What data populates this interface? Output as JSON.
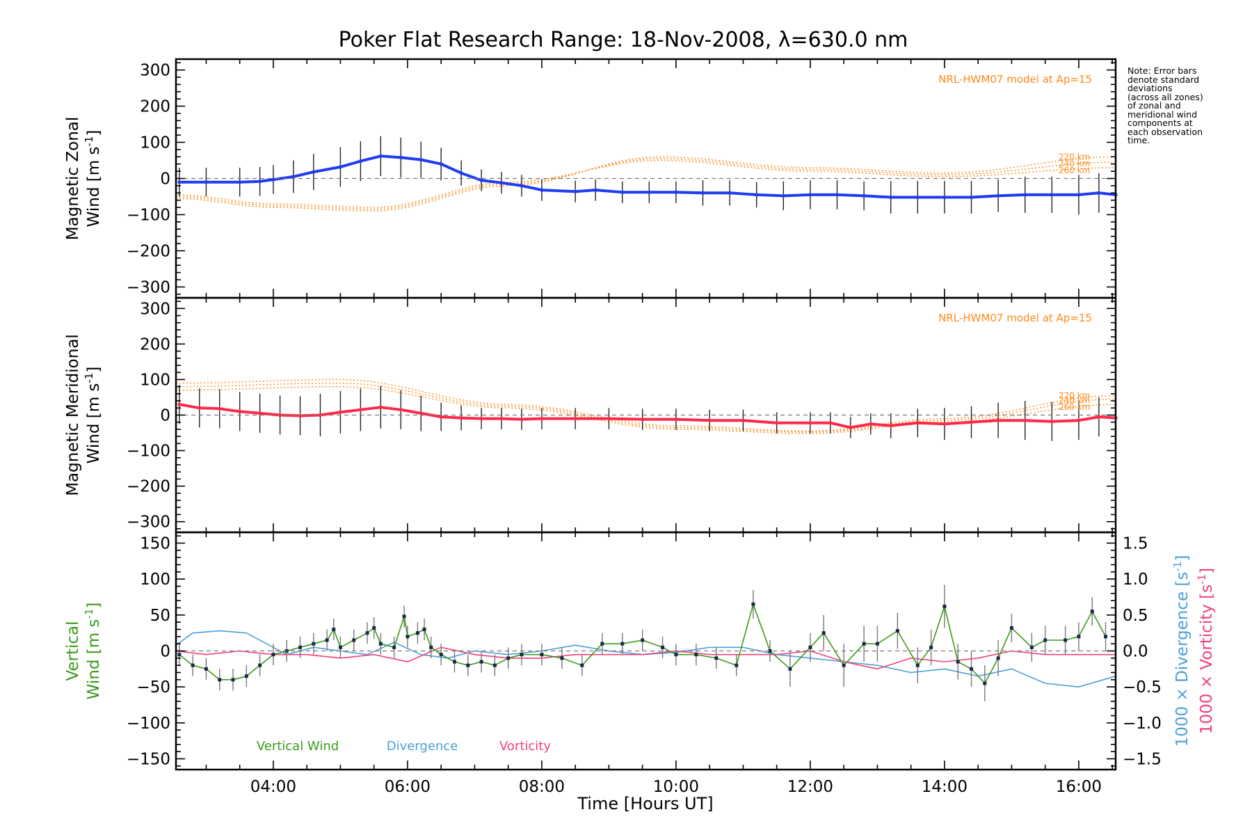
{
  "title": "Poker Flat Research Range: 18-Nov-2008, λ=630.0 nm",
  "note_lines": [
    "Note: Error bars",
    "denote standard",
    "deviations",
    "(across all zones)",
    "of zonal and",
    "meridional wind",
    "components at",
    "each observation",
    "time."
  ],
  "colors": {
    "zonal": "#1f3cf0",
    "meridional": "#ff2a4a",
    "model": "#ff8a1a",
    "vertical": "#3a9a1a",
    "divergence": "#4aa0d8",
    "vorticity": "#f0407a",
    "zone_points": "#9a9ae8"
  },
  "x_axis": {
    "label": "Time [Hours UT]",
    "range": [
      2.55,
      16.55
    ],
    "ticks": [
      4,
      6,
      8,
      10,
      12,
      14,
      16
    ],
    "tick_labels": [
      "04:00",
      "06:00",
      "08:00",
      "10:00",
      "12:00",
      "14:00",
      "16:00"
    ]
  },
  "chart_data": [
    {
      "type": "line",
      "panel": "zonal",
      "ylabel_line1": "Magnetic Zonal",
      "ylabel_line2": "Wind [m s",
      "ylabel_sup": "-1",
      "ylabel_close": "]",
      "ylim": [
        -330,
        330
      ],
      "yticks": [
        -300,
        -200,
        -100,
        0,
        100,
        200,
        300
      ],
      "ytick_labels": [
        "−300",
        "−200",
        "−100",
        "0",
        "100",
        "200",
        "300"
      ],
      "model_label": "NRL-HWM07 model at Ap=15",
      "model_heights": [
        "220 km",
        "240 km",
        "260 km"
      ],
      "series": [
        {
          "name": "",
          "x": [
            2.6,
            3.0,
            3.5,
            3.8,
            4.0,
            4.3,
            4.6,
            5.0,
            5.3,
            5.6,
            5.9,
            6.2,
            6.5,
            6.8,
            7.1,
            7.4,
            7.7,
            8.0,
            8.5,
            8.8,
            9.2,
            9.6,
            10.0,
            10.4,
            10.8,
            11.2,
            11.6,
            12.0,
            12.4,
            12.8,
            13.2,
            13.6,
            14.0,
            14.4,
            14.8,
            15.2,
            15.6,
            16.0,
            16.3,
            16.55
          ],
          "y": [
            -10,
            -10,
            -10,
            -8,
            -3,
            5,
            18,
            32,
            48,
            62,
            58,
            52,
            40,
            15,
            -5,
            -12,
            -20,
            -32,
            -36,
            -32,
            -38,
            -38,
            -38,
            -40,
            -40,
            -45,
            -48,
            -45,
            -45,
            -48,
            -52,
            -52,
            -52,
            -52,
            -48,
            -45,
            -45,
            -45,
            -40,
            -45
          ],
          "err": [
            40,
            40,
            40,
            40,
            40,
            45,
            50,
            55,
            55,
            55,
            55,
            50,
            45,
            35,
            30,
            30,
            30,
            30,
            30,
            30,
            30,
            30,
            30,
            35,
            35,
            35,
            40,
            40,
            40,
            40,
            45,
            45,
            45,
            45,
            45,
            50,
            50,
            55,
            55,
            55
          ]
        }
      ],
      "model": [
        {
          "name": "220 km",
          "x": [
            2.55,
            4,
            5.5,
            7.5,
            9.75,
            12,
            14,
            16.55
          ],
          "y": [
            -55,
            -80,
            -90,
            -20,
            60,
            30,
            15,
            60
          ]
        },
        {
          "name": "240 km",
          "x": [
            2.55,
            4,
            5.5,
            7.5,
            9.75,
            12,
            14,
            16.55
          ],
          "y": [
            -50,
            -75,
            -85,
            -15,
            55,
            25,
            10,
            45
          ]
        },
        {
          "name": "260 km",
          "x": [
            2.55,
            4,
            5.5,
            7.5,
            9.75,
            12,
            14,
            16.55
          ],
          "y": [
            -45,
            -70,
            -80,
            -10,
            50,
            20,
            5,
            30
          ]
        }
      ]
    },
    {
      "type": "line",
      "panel": "meridional",
      "ylabel_line1": "Magnetic Meridional",
      "ylabel_line2": "Wind [m s",
      "ylabel_sup": "-1",
      "ylabel_close": "]",
      "ylim": [
        -330,
        330
      ],
      "yticks": [
        -300,
        -200,
        -100,
        0,
        100,
        200,
        300
      ],
      "ytick_labels": [
        "−300",
        "−200",
        "−100",
        "0",
        "100",
        "200",
        "300"
      ],
      "model_label": "NRL-HWM07 model at Ap=15",
      "model_heights": [
        "220 km",
        "240 km",
        "260 km"
      ],
      "series": [
        {
          "name": "",
          "x": [
            2.6,
            2.9,
            3.2,
            3.5,
            3.8,
            4.1,
            4.4,
            4.7,
            5.0,
            5.3,
            5.6,
            5.9,
            6.2,
            6.5,
            6.8,
            7.1,
            7.4,
            7.7,
            8.0,
            8.5,
            9.0,
            9.5,
            10.0,
            10.5,
            11.0,
            11.5,
            12.0,
            12.3,
            12.6,
            12.9,
            13.2,
            13.6,
            14.0,
            14.4,
            14.8,
            15.2,
            15.6,
            16.0,
            16.3,
            16.55
          ],
          "y": [
            30,
            20,
            18,
            10,
            5,
            0,
            -2,
            0,
            8,
            15,
            22,
            15,
            5,
            -5,
            -8,
            -10,
            -10,
            -12,
            -10,
            -10,
            -10,
            -12,
            -12,
            -15,
            -15,
            -22,
            -22,
            -22,
            -35,
            -25,
            -30,
            -22,
            -25,
            -20,
            -15,
            -15,
            -18,
            -15,
            -5,
            -8
          ],
          "err": [
            55,
            55,
            55,
            55,
            55,
            55,
            55,
            60,
            60,
            60,
            60,
            55,
            50,
            40,
            35,
            30,
            30,
            30,
            30,
            30,
            30,
            30,
            30,
            30,
            30,
            30,
            30,
            30,
            30,
            30,
            35,
            40,
            45,
            45,
            50,
            55,
            55,
            55,
            55,
            55
          ]
        }
      ],
      "model": [
        {
          "name": "220 km",
          "x": [
            2.55,
            5,
            7.5,
            10,
            12,
            14,
            16.55
          ],
          "y": [
            90,
            100,
            30,
            -30,
            -45,
            -10,
            55
          ]
        },
        {
          "name": "240 km",
          "x": [
            2.55,
            5,
            7.5,
            10,
            12,
            14,
            16.55
          ],
          "y": [
            80,
            90,
            25,
            -35,
            -48,
            -15,
            45
          ]
        },
        {
          "name": "260 km",
          "x": [
            2.55,
            5,
            7.5,
            10,
            12,
            14,
            16.55
          ],
          "y": [
            70,
            80,
            20,
            -40,
            -52,
            -20,
            30
          ]
        }
      ]
    },
    {
      "type": "line",
      "panel": "vertical",
      "ylabel_line1": "Vertical",
      "ylabel_line2": "Wind [m s",
      "ylabel_sup": "-1",
      "ylabel_close": "]",
      "ylim": [
        -165,
        165
      ],
      "yticks": [
        -150,
        -100,
        -50,
        0,
        50,
        100,
        150
      ],
      "ytick_labels": [
        "−150",
        "−100",
        "−50",
        "0",
        "50",
        "100",
        "150"
      ],
      "y2lim": [
        -1.65,
        1.65
      ],
      "y2ticks": [
        -1.5,
        -1.0,
        -0.5,
        0.0,
        0.5,
        1.0,
        1.5
      ],
      "y2tick_labels": [
        "−1.5",
        "−1.0",
        "−0.5",
        "0.0",
        "0.5",
        "1.0",
        "1.5"
      ],
      "y2label_div": "1000 × Divergence [s",
      "y2label_vor": "1000 × Vorticity [s",
      "y2label_sup": "-1",
      "y2label_close": "]",
      "legend": [
        "Vertical Wind",
        "Divergence",
        "Vorticity"
      ],
      "series": [
        {
          "name": "Vertical Wind",
          "x": [
            2.6,
            2.8,
            3.0,
            3.2,
            3.4,
            3.6,
            3.8,
            4.0,
            4.2,
            4.4,
            4.6,
            4.8,
            4.9,
            5.0,
            5.2,
            5.4,
            5.5,
            5.6,
            5.8,
            5.95,
            6.0,
            6.15,
            6.25,
            6.35,
            6.5,
            6.7,
            6.9,
            7.1,
            7.3,
            7.5,
            7.7,
            8.0,
            8.3,
            8.6,
            8.9,
            9.2,
            9.5,
            9.8,
            10.0,
            10.3,
            10.6,
            10.9,
            11.15,
            11.4,
            11.7,
            12.0,
            12.2,
            12.5,
            12.8,
            13.0,
            13.3,
            13.6,
            13.8,
            14.0,
            14.2,
            14.4,
            14.6,
            14.8,
            15.0,
            15.3,
            15.5,
            15.8,
            16.0,
            16.2,
            16.4
          ],
          "y": [
            -5,
            -20,
            -25,
            -40,
            -40,
            -35,
            -20,
            -5,
            0,
            5,
            10,
            15,
            30,
            5,
            15,
            25,
            32,
            10,
            5,
            48,
            20,
            25,
            30,
            5,
            -5,
            -15,
            -20,
            -15,
            -20,
            -10,
            -5,
            -5,
            -10,
            -20,
            10,
            10,
            15,
            5,
            -5,
            -5,
            -10,
            -20,
            65,
            0,
            -25,
            5,
            25,
            -20,
            10,
            10,
            28,
            -20,
            5,
            62,
            -15,
            -25,
            -45,
            -10,
            32,
            5,
            15,
            15,
            20,
            55,
            20
          ],
          "err": [
            15,
            15,
            15,
            15,
            15,
            15,
            15,
            15,
            15,
            15,
            15,
            15,
            15,
            15,
            15,
            15,
            15,
            15,
            15,
            15,
            15,
            15,
            15,
            15,
            15,
            15,
            15,
            15,
            15,
            15,
            15,
            15,
            15,
            15,
            15,
            15,
            15,
            15,
            15,
            15,
            15,
            15,
            20,
            15,
            25,
            20,
            25,
            30,
            25,
            25,
            25,
            25,
            25,
            30,
            25,
            25,
            25,
            25,
            20,
            20,
            20,
            20,
            20,
            20,
            20
          ]
        },
        {
          "name": "Divergence",
          "x": [
            2.55,
            2.8,
            3.2,
            3.6,
            3.9,
            4.2,
            4.6,
            5.0,
            5.4,
            5.8,
            6.2,
            6.6,
            7.0,
            7.5,
            8.0,
            8.5,
            9.0,
            9.5,
            10.0,
            10.5,
            11.0,
            11.5,
            12.0,
            12.5,
            13.0,
            13.5,
            14.0,
            14.5,
            15.0,
            15.5,
            16.0,
            16.55
          ],
          "y": [
            0.08,
            0.25,
            0.28,
            0.25,
            0.1,
            -0.05,
            0.05,
            0.0,
            -0.05,
            0.12,
            -0.05,
            -0.1,
            0.0,
            -0.05,
            0.0,
            0.08,
            0.0,
            -0.05,
            -0.02,
            0.05,
            0.05,
            -0.05,
            -0.1,
            -0.15,
            -0.2,
            -0.3,
            -0.25,
            -0.35,
            -0.25,
            -0.45,
            -0.5,
            -0.35
          ]
        },
        {
          "name": "Vorticity",
          "x": [
            2.55,
            3.0,
            3.5,
            4.0,
            4.5,
            5.0,
            5.5,
            6.0,
            6.5,
            7.0,
            7.5,
            8.0,
            8.5,
            9.0,
            9.5,
            10.0,
            10.5,
            11.0,
            11.5,
            12.0,
            12.5,
            13.0,
            13.5,
            14.0,
            14.5,
            15.0,
            15.5,
            16.0,
            16.55
          ],
          "y": [
            0.0,
            -0.05,
            0.0,
            -0.05,
            -0.05,
            -0.1,
            -0.05,
            -0.15,
            0.05,
            -0.05,
            -0.1,
            -0.1,
            -0.05,
            -0.05,
            -0.05,
            0.0,
            -0.05,
            -0.05,
            -0.05,
            0.0,
            -0.15,
            -0.25,
            -0.1,
            -0.15,
            -0.1,
            0.0,
            -0.05,
            -0.05,
            -0.05
          ]
        }
      ]
    }
  ]
}
